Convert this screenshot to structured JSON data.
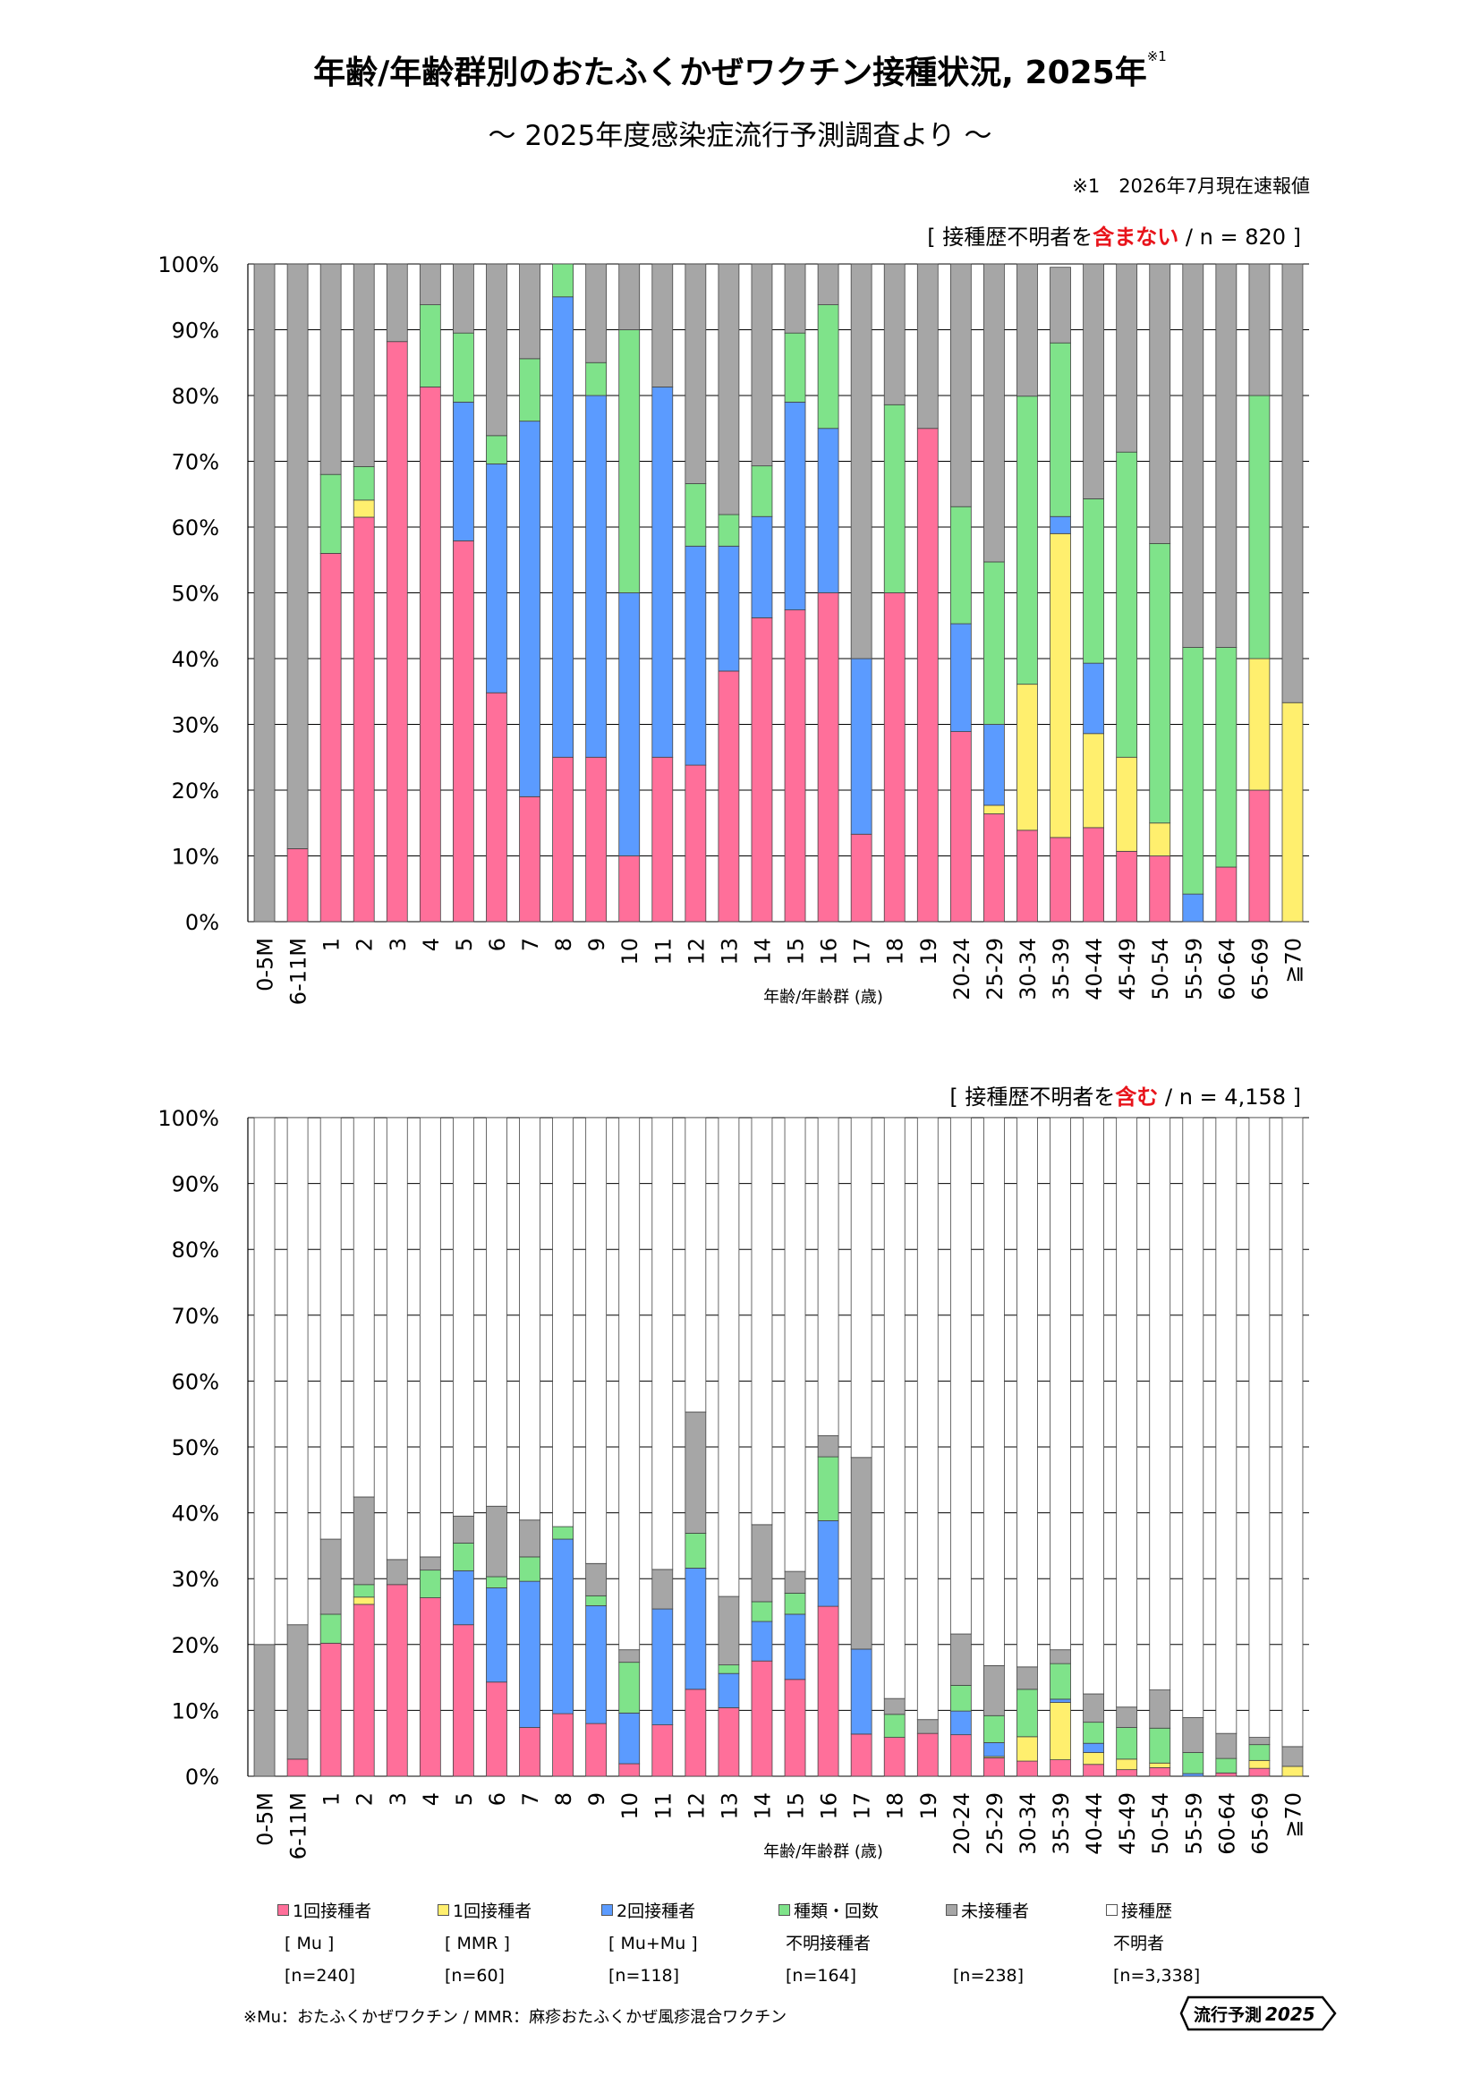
{
  "header": {
    "title": "年齢/年齢群別のおたふくかぜワクチン接種状況, 2025年",
    "title_mark": "※1",
    "subtitle": "～ 2025年度感染症流行予測調査より ～",
    "note": "※1　2026年7月現在速報値"
  },
  "chart1_label": {
    "prefix": "[ 接種歴不明者を",
    "highlight": "含まない",
    "suffix": " / n = 820 ]"
  },
  "chart2_label": {
    "prefix": "[ 接種歴不明者を",
    "highlight": "含む",
    "suffix": " / n = 4,158 ]"
  },
  "colors": {
    "mu1": "#ff6f9a",
    "mmr1": "#ffef6e",
    "mu2": "#5b9bff",
    "unknown_type": "#7fe38a",
    "unvaccinated": "#a6a6a6",
    "unknown_history": "#ffffff"
  },
  "legend": [
    {
      "key": "mu1",
      "line1": "1回接種者",
      "line2": "[ Mu ]",
      "line3": "[n=240]"
    },
    {
      "key": "mmr1",
      "line1": "1回接種者",
      "line2": "[ MMR ]",
      "line3": "[n=60]"
    },
    {
      "key": "mu2",
      "line1": "2回接種者",
      "line2": "[ Mu+Mu ]",
      "line3": "[n=118]"
    },
    {
      "key": "unknown_type",
      "line1": "種類・回数",
      "line2": "不明接種者",
      "line3": "[n=164]"
    },
    {
      "key": "unvaccinated",
      "line1": "未接種者",
      "line2": "",
      "line3": "[n=238]"
    },
    {
      "key": "unknown_history",
      "line1": "接種歴",
      "line2": "不明者",
      "line3": "[n=3,338]"
    }
  ],
  "footnote": "※Mu：おたふくかぜワクチン / MMR：麻疹おたふくかぜ風疹混合ワクチン",
  "logo": {
    "text1": "流行予測",
    "text2": "2025"
  },
  "chart_data": [
    {
      "type": "bar",
      "stacked": true,
      "xlabel": "年齢/年齢群 (歳)",
      "ylabel": "",
      "ylim": [
        0,
        100
      ],
      "yticks": [
        "0%",
        "10%",
        "20%",
        "30%",
        "40%",
        "50%",
        "60%",
        "70%",
        "80%",
        "90%",
        "100%"
      ],
      "categories": [
        "0-5M",
        "6-11M",
        "1",
        "2",
        "3",
        "4",
        "5",
        "6",
        "7",
        "8",
        "9",
        "10",
        "11",
        "12",
        "13",
        "14",
        "15",
        "16",
        "17",
        "18",
        "19",
        "20-24",
        "25-29",
        "30-34",
        "35-39",
        "40-44",
        "45-49",
        "50-54",
        "55-59",
        "60-64",
        "65-69",
        "≧70"
      ],
      "series": [
        {
          "name": "1回接種者 [ Mu ]",
          "key": "mu1",
          "values": [
            0,
            11.1,
            56,
            61.5,
            88.2,
            81.3,
            57.9,
            34.8,
            19,
            25,
            25,
            10,
            25,
            23.8,
            38.1,
            46.2,
            47.4,
            50,
            13.3,
            50,
            75,
            28.9,
            16.4,
            13.9,
            12.8,
            14.3,
            10.7,
            10,
            0,
            8.3,
            20,
            0
          ]
        },
        {
          "name": "1回接種者 [ MMR ]",
          "key": "mmr1",
          "values": [
            0,
            0,
            0,
            2.6,
            0,
            0,
            0,
            0,
            0,
            0,
            0,
            0,
            0,
            0,
            0,
            0,
            0,
            0,
            0,
            0,
            0,
            0,
            1.3,
            22.2,
            46.2,
            14.3,
            14.3,
            5,
            0,
            0,
            20,
            33.3
          ]
        },
        {
          "name": "2回接種者 [ Mu+Mu ]",
          "key": "mu2",
          "values": [
            0,
            0,
            0,
            0,
            0,
            0,
            21.1,
            34.8,
            57.1,
            70,
            55,
            40,
            56.3,
            33.3,
            19,
            15.4,
            31.6,
            25,
            26.7,
            0,
            0,
            16.4,
            12.3,
            0,
            2.6,
            10.7,
            0,
            0,
            4.2,
            0,
            0,
            0
          ]
        },
        {
          "name": "種類・回数 不明接種者",
          "key": "unknown_type",
          "values": [
            0,
            0,
            12,
            5.1,
            0,
            12.5,
            10.5,
            4.3,
            9.5,
            5,
            5,
            40,
            0,
            9.5,
            4.8,
            7.7,
            10.5,
            18.8,
            0,
            28.6,
            0,
            17.8,
            24.7,
            43.8,
            26.4,
            25,
            46.4,
            42.5,
            37.5,
            33.4,
            40,
            0
          ]
        },
        {
          "name": "未接種者",
          "key": "unvaccinated",
          "values": [
            100,
            88.9,
            32,
            30.8,
            11.8,
            6.2,
            10.5,
            26.1,
            14.4,
            0,
            15,
            10,
            18.7,
            33.4,
            38.1,
            30.7,
            10.5,
            6.2,
            60,
            21.4,
            25,
            36.9,
            45.3,
            20.1,
            11.5,
            35.7,
            28.6,
            42.5,
            58.3,
            58.3,
            20,
            66.7
          ]
        }
      ]
    },
    {
      "type": "bar",
      "stacked": true,
      "xlabel": "年齢/年齢群 (歳)",
      "ylabel": "",
      "ylim": [
        0,
        100
      ],
      "yticks": [
        "0%",
        "10%",
        "20%",
        "30%",
        "40%",
        "50%",
        "60%",
        "70%",
        "80%",
        "90%",
        "100%"
      ],
      "categories": [
        "0-5M",
        "6-11M",
        "1",
        "2",
        "3",
        "4",
        "5",
        "6",
        "7",
        "8",
        "9",
        "10",
        "11",
        "12",
        "13",
        "14",
        "15",
        "16",
        "17",
        "18",
        "19",
        "20-24",
        "25-29",
        "30-34",
        "35-39",
        "40-44",
        "45-49",
        "50-54",
        "55-59",
        "60-64",
        "65-69",
        "≧70"
      ],
      "series": [
        {
          "name": "1回接種者 [ Mu ]",
          "key": "mu1",
          "values": [
            0,
            2.6,
            20.2,
            26.1,
            29.1,
            27.1,
            23,
            14.3,
            7.4,
            9.5,
            8,
            1.9,
            7.8,
            13.2,
            10.4,
            17.5,
            14.7,
            25.8,
            6.4,
            5.9,
            6.5,
            6.3,
            2.8,
            2.3,
            2.5,
            1.8,
            1,
            1.3,
            0,
            0.5,
            1.2,
            0
          ]
        },
        {
          "name": "1回接種者 [ MMR ]",
          "key": "mmr1",
          "values": [
            0,
            0,
            0,
            1.1,
            0,
            0,
            0,
            0,
            0,
            0,
            0,
            0,
            0,
            0,
            0,
            0,
            0,
            0,
            0,
            0,
            0,
            0,
            0.2,
            3.7,
            8.7,
            1.8,
            1.6,
            0.7,
            0,
            0,
            1.2,
            1.5
          ]
        },
        {
          "name": "2回接種者 [ Mu+Mu ]",
          "key": "mu2",
          "values": [
            0,
            0,
            0,
            0,
            0,
            0,
            8.2,
            14.3,
            22.2,
            26.5,
            17.9,
            7.7,
            17.6,
            18.4,
            5.2,
            6,
            9.9,
            13,
            12.9,
            0,
            0,
            3.6,
            2.1,
            0,
            0.5,
            1.4,
            0,
            0,
            0.4,
            0,
            0,
            0
          ]
        },
        {
          "name": "種類・回数 不明接種者",
          "key": "unknown_type",
          "values": [
            0,
            0,
            4.4,
            1.9,
            0,
            4.2,
            4.2,
            1.7,
            3.7,
            1.9,
            1.5,
            7.7,
            0,
            5.3,
            1.3,
            3,
            3.2,
            9.7,
            0,
            3.5,
            0,
            3.9,
            4.1,
            7.2,
            5.4,
            3.2,
            4.8,
            5.3,
            3.2,
            2.2,
            2.4,
            0
          ]
        },
        {
          "name": "未接種者",
          "key": "unvaccinated",
          "values": [
            20,
            20.4,
            11.4,
            13.3,
            3.8,
            2,
            4.1,
            10.7,
            5.6,
            0,
            4.9,
            1.9,
            6,
            18.4,
            10.4,
            11.7,
            3.3,
            3.2,
            29.1,
            2.4,
            2.1,
            7.8,
            7.6,
            3.4,
            2.1,
            4.3,
            3.1,
            5.8,
            5.3,
            3.8,
            1.1,
            3
          ]
        },
        {
          "name": "接種歴 不明者",
          "key": "unknown_history",
          "values": [
            80,
            77,
            64,
            57.6,
            67.1,
            66.7,
            60.5,
            59,
            61.1,
            62.1,
            67.7,
            80.8,
            68.6,
            44.7,
            72.7,
            61.8,
            68.9,
            48.3,
            51.6,
            88.2,
            91.4,
            78.4,
            83.2,
            83.4,
            80.8,
            87.5,
            89.5,
            86.9,
            91.1,
            93.5,
            94.1,
            95.5
          ]
        }
      ]
    }
  ]
}
